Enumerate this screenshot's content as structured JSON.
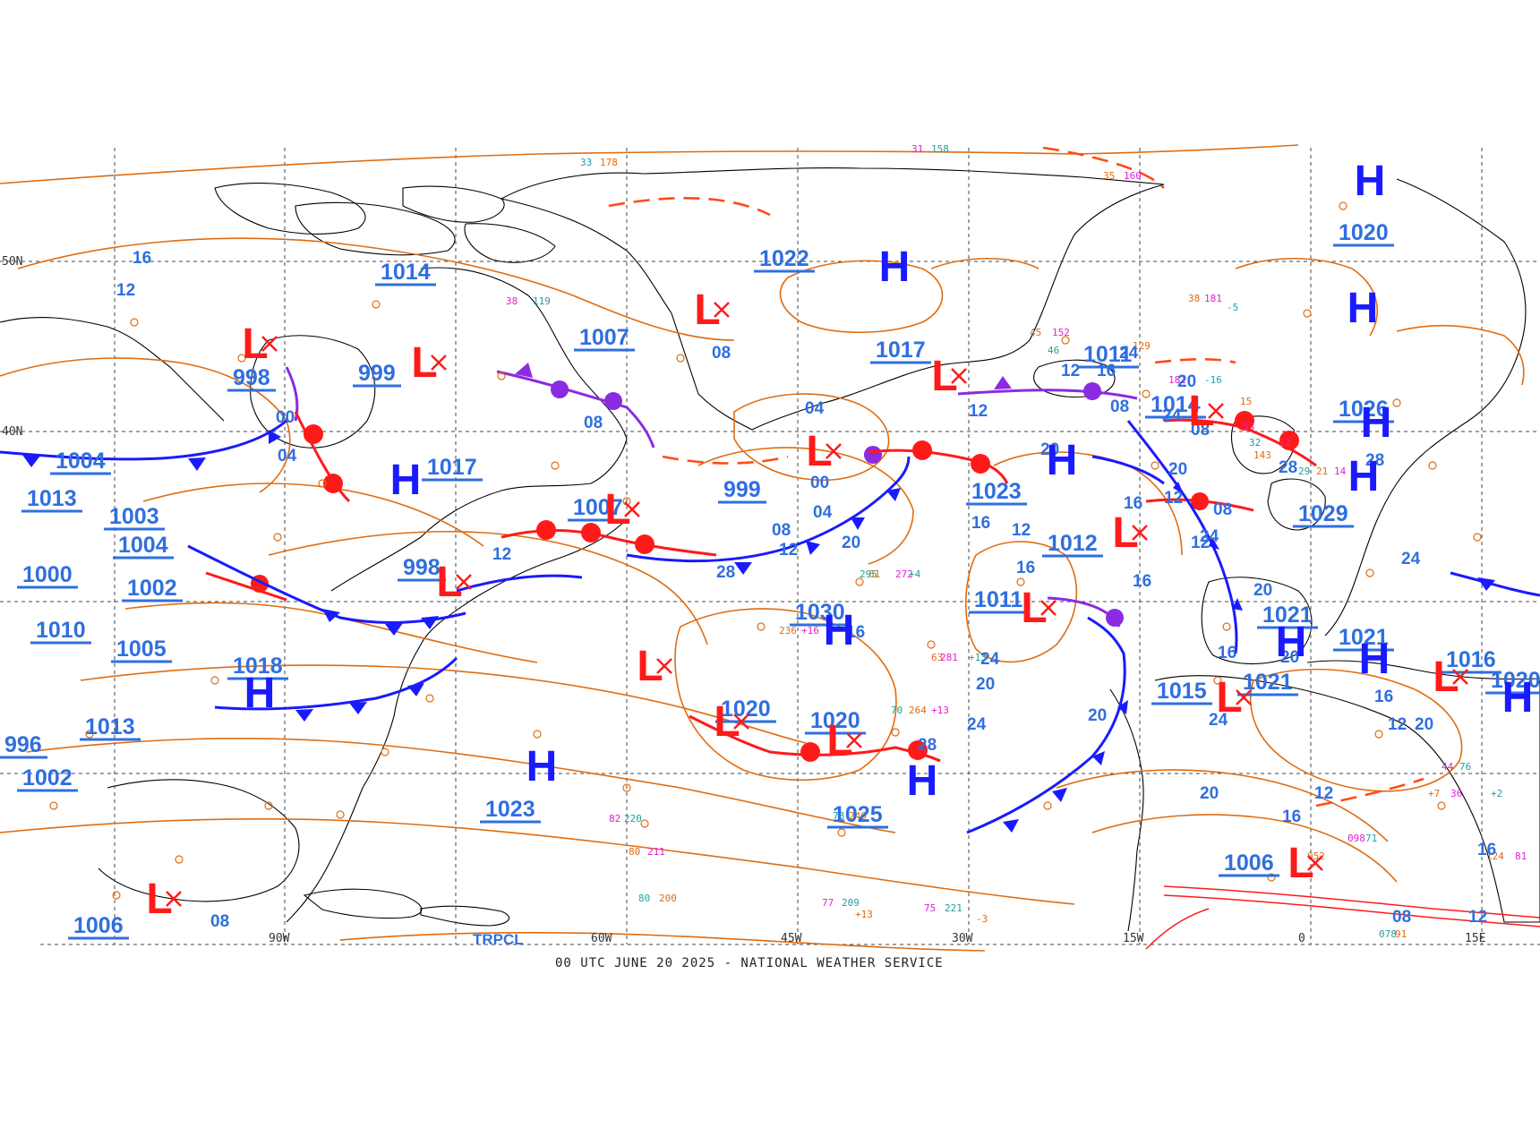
{
  "caption": "00 UTC JUNE 20 2025 - NATIONAL WEATHER SERVICE",
  "watermark": "TRPCL",
  "colors": {
    "coast": "#000000",
    "isobar": "#e06c10",
    "trough": "#ff4a1a",
    "warm_front": "#ff1a1a",
    "cold_front": "#1a1aff",
    "occluded": "#8a2be2",
    "pressure_label": "#2f6fe0",
    "high": "#1a1aff",
    "low": "#ff1a1a",
    "station_orange": "#e06c10",
    "station_magenta": "#e020d0",
    "station_teal": "#20a0a0",
    "grid": "#444444"
  },
  "grid_labels": {
    "lon": [
      "60W",
      "45W",
      "30W",
      "15W",
      "0",
      "15E",
      "90W"
    ],
    "lat": [
      "50N",
      "40N"
    ]
  },
  "highs": [
    {
      "letter": "H",
      "value": "1020"
    },
    {
      "letter": "H",
      "value": "1017"
    },
    {
      "letter": "H",
      "value": "1026"
    },
    {
      "letter": "H",
      "value": "1029"
    },
    {
      "letter": "H",
      "value": "1030"
    },
    {
      "letter": "H",
      "value": "1025"
    },
    {
      "letter": "H",
      "value": "1023"
    },
    {
      "letter": "H",
      "value": "1018"
    },
    {
      "letter": "H",
      "value": "1017"
    },
    {
      "letter": "H",
      "value": "1022"
    },
    {
      "letter": "H",
      "value": "1021"
    },
    {
      "letter": "H",
      "value": "1021"
    },
    {
      "letter": "H",
      "value": "1021"
    },
    {
      "letter": "H",
      "value": "1023"
    }
  ],
  "lows": [
    {
      "letter": "L",
      "value": "998"
    },
    {
      "letter": "L",
      "value": "999"
    },
    {
      "letter": "L",
      "value": "1007"
    },
    {
      "letter": "L",
      "value": "999"
    },
    {
      "letter": "L",
      "value": "1007"
    },
    {
      "letter": "L",
      "value": "998"
    },
    {
      "letter": "L",
      "value": "1018"
    },
    {
      "letter": "L",
      "value": "1020"
    },
    {
      "letter": "L",
      "value": "1020"
    },
    {
      "letter": "L",
      "value": "1011"
    },
    {
      "letter": "L",
      "value": "1012"
    },
    {
      "letter": "L",
      "value": "1014"
    },
    {
      "letter": "L",
      "value": "1015"
    },
    {
      "letter": "L",
      "value": "1006"
    },
    {
      "letter": "L",
      "value": "1006"
    },
    {
      "letter": "L",
      "value": "1016"
    },
    {
      "letter": "L",
      "value": "1011"
    }
  ],
  "pressure_labels": [
    "1014",
    "1022",
    "1020",
    "1017",
    "1011",
    "1007",
    "998",
    "999",
    "1004",
    "1013",
    "1003",
    "1004",
    "1017",
    "1007",
    "999",
    "1023",
    "1012",
    "1014",
    "1026",
    "1029",
    "1000",
    "1002",
    "998",
    "1010",
    "1005",
    "1018",
    "1030",
    "1011",
    "1021",
    "1021",
    "1016",
    "1020",
    "1015",
    "1021",
    "996",
    "1013",
    "1002",
    "1020",
    "1020",
    "1023",
    "1025",
    "1006",
    "1006"
  ],
  "isobar_labels": [
    "16",
    "12",
    "08",
    "00",
    "04",
    "08",
    "12",
    "16",
    "20",
    "24",
    "28",
    "20",
    "16",
    "12",
    "08",
    "04",
    "00",
    "04",
    "08",
    "12",
    "16",
    "20",
    "24",
    "12",
    "16",
    "20",
    "24",
    "28",
    "20",
    "16",
    "12",
    "08",
    "20",
    "24",
    "16",
    "20",
    "24",
    "16",
    "12",
    "08",
    "12",
    "16",
    "20",
    "28",
    "24",
    "20",
    "16",
    "12",
    "08",
    "12",
    "16",
    "20",
    "24",
    "28",
    "12",
    "08"
  ],
  "station_values": [
    "33",
    "178",
    "31",
    "158",
    "35",
    "160",
    "33",
    "182",
    "38",
    "119",
    "38",
    "181",
    "-5",
    "45",
    "152",
    "46",
    "129",
    "181",
    "-16",
    "15",
    "53",
    "32",
    "143",
    "12",
    "29",
    "21",
    "14",
    "295",
    "61",
    "272",
    "+4",
    "63",
    "281",
    "+13",
    "236",
    "+16",
    "70",
    "264",
    "+13",
    "78",
    "246",
    "77",
    "209",
    "+13",
    "82",
    "220",
    "80",
    "211",
    "80",
    "200",
    "75",
    "221",
    "-3",
    "44",
    "76",
    "+7",
    "36",
    "+2",
    "124",
    "81",
    "078",
    "91",
    "098",
    "71",
    "052"
  ]
}
